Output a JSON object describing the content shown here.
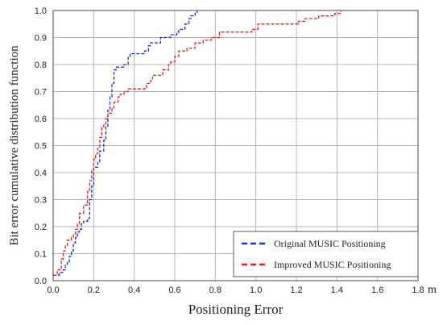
{
  "chart_data": {
    "type": "line",
    "xlabel": "Positioning Error",
    "x_unit": "m",
    "ylabel": "Bit error cumulative distribution function",
    "xlim": [
      0,
      1.8
    ],
    "ylim": [
      0,
      1.0
    ],
    "x_ticks": [
      "0.0",
      "0.2",
      "0.4",
      "0.6",
      "0.8",
      "1.0",
      "1.2",
      "1.4",
      "1.6",
      "1.8"
    ],
    "y_ticks": [
      "0.0",
      "0.1",
      "0.2",
      "0.3",
      "0.4",
      "0.5",
      "0.6",
      "0.7",
      "0.8",
      "0.9",
      "1.0"
    ],
    "grid": true,
    "legend_position": "bottom-right",
    "series": [
      {
        "name": "Original MUSIC Positioning",
        "color": "#1f2fd6",
        "x": [
          0.0,
          0.02,
          0.03,
          0.05,
          0.06,
          0.07,
          0.08,
          0.09,
          0.1,
          0.11,
          0.12,
          0.13,
          0.14,
          0.15,
          0.16,
          0.17,
          0.18,
          0.19,
          0.2,
          0.22,
          0.23,
          0.25,
          0.26,
          0.27,
          0.28,
          0.29,
          0.3,
          0.31,
          0.34,
          0.35,
          0.37,
          0.38,
          0.44,
          0.45,
          0.47,
          0.48,
          0.52,
          0.53,
          0.57,
          0.58,
          0.61,
          0.62,
          0.64,
          0.65,
          0.67,
          0.68,
          0.7,
          0.71
        ],
        "y": [
          0.02,
          0.02,
          0.03,
          0.04,
          0.06,
          0.07,
          0.09,
          0.11,
          0.14,
          0.16,
          0.18,
          0.19,
          0.21,
          0.22,
          0.22,
          0.23,
          0.3,
          0.35,
          0.42,
          0.44,
          0.48,
          0.52,
          0.57,
          0.63,
          0.68,
          0.73,
          0.78,
          0.79,
          0.79,
          0.8,
          0.83,
          0.84,
          0.84,
          0.85,
          0.87,
          0.88,
          0.88,
          0.9,
          0.9,
          0.91,
          0.92,
          0.93,
          0.93,
          0.95,
          0.97,
          0.98,
          0.99,
          1.0
        ]
      },
      {
        "name": "Improved MUSIC Positioning",
        "color": "#e02020",
        "x": [
          0.0,
          0.02,
          0.04,
          0.05,
          0.06,
          0.07,
          0.09,
          0.1,
          0.11,
          0.12,
          0.13,
          0.15,
          0.17,
          0.18,
          0.19,
          0.2,
          0.21,
          0.22,
          0.23,
          0.24,
          0.25,
          0.26,
          0.27,
          0.29,
          0.3,
          0.32,
          0.33,
          0.35,
          0.37,
          0.45,
          0.46,
          0.48,
          0.49,
          0.53,
          0.54,
          0.57,
          0.58,
          0.6,
          0.62,
          0.65,
          0.66,
          0.69,
          0.7,
          0.73,
          0.74,
          0.77,
          0.78,
          0.81,
          0.82,
          0.96,
          0.98,
          1.0,
          1.01,
          1.2,
          1.21,
          1.23,
          1.24,
          1.3,
          1.31,
          1.38,
          1.39,
          1.41,
          1.42
        ],
        "y": [
          0.02,
          0.04,
          0.08,
          0.11,
          0.13,
          0.15,
          0.16,
          0.17,
          0.19,
          0.21,
          0.25,
          0.28,
          0.33,
          0.37,
          0.41,
          0.45,
          0.47,
          0.49,
          0.53,
          0.57,
          0.58,
          0.6,
          0.62,
          0.64,
          0.66,
          0.68,
          0.69,
          0.7,
          0.71,
          0.71,
          0.73,
          0.74,
          0.76,
          0.76,
          0.78,
          0.8,
          0.81,
          0.83,
          0.85,
          0.85,
          0.86,
          0.86,
          0.88,
          0.88,
          0.89,
          0.89,
          0.9,
          0.9,
          0.92,
          0.92,
          0.93,
          0.93,
          0.95,
          0.95,
          0.96,
          0.96,
          0.97,
          0.97,
          0.98,
          0.98,
          0.99,
          0.99,
          1.0
        ]
      }
    ]
  }
}
